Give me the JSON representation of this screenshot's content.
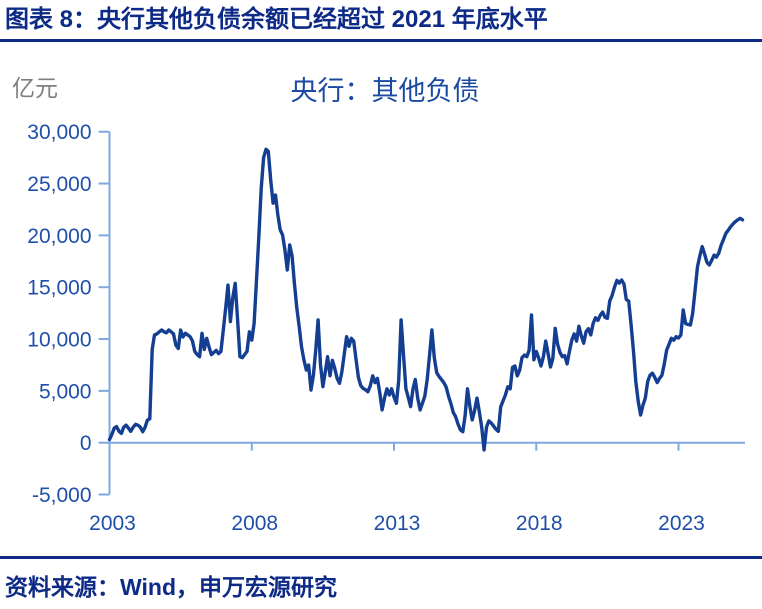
{
  "header": {
    "title": "图表 8：央行其他负债余额已经超过 2021 年底水平"
  },
  "footer": {
    "source": "资料来源：Wind，申万宏源研究"
  },
  "chart_data": {
    "type": "line",
    "title": "央行：其他负债",
    "unit_label": "亿元",
    "series_name": "央行：其他负债",
    "frequency": "monthly",
    "x_start": {
      "year": 2003,
      "month": 1
    },
    "x_end": {
      "year": 2025,
      "month": 4
    },
    "x_tick_years": [
      2003,
      2008,
      2013,
      2018,
      2023
    ],
    "y_ticks": [
      -5000,
      0,
      5000,
      10000,
      15000,
      20000,
      25000,
      30000
    ],
    "ylim": [
      -5000,
      30000
    ],
    "grid": false,
    "legend": "none",
    "colors": {
      "line": "#143e92",
      "axis": "#7fa9dc",
      "tick_label": "#1f4fa8",
      "chart_title": "#1b4aa2",
      "unit_label": "#7f7f7f",
      "heading_navy": "#0d2a86"
    },
    "values": [
      300,
      800,
      1400,
      1550,
      1100,
      900,
      1500,
      1690,
      1400,
      1100,
      1500,
      1770,
      1690,
      1500,
      1060,
      1500,
      2180,
      2300,
      9000,
      10400,
      10500,
      10700,
      10875,
      10700,
      10600,
      10875,
      10700,
      10500,
      9400,
      9100,
      10875,
      10200,
      10550,
      10400,
      10230,
      9800,
      8800,
      8500,
      8300,
      10550,
      9000,
      10070,
      9200,
      8500,
      8700,
      8900,
      8600,
      8800,
      10875,
      13000,
      15200,
      11680,
      14000,
      15380,
      12000,
      8300,
      8200,
      8500,
      8800,
      10700,
      9900,
      11500,
      15700,
      20000,
      24500,
      27500,
      28300,
      28100,
      25350,
      23100,
      23900,
      22000,
      20525,
      20040,
      18600,
      16660,
      19080,
      18000,
      15380,
      13000,
      11195,
      9260,
      8000,
      7015,
      7500,
      5085,
      6500,
      9000,
      11840,
      7500,
      5400,
      6800,
      8300,
      6450,
      7940,
      7200,
      6200,
      5730,
      6800,
      8500,
      10230,
      9300,
      10070,
      9800,
      8000,
      6300,
      5500,
      5230,
      5100,
      4910,
      5500,
      6450,
      5800,
      6200,
      4800,
      3160,
      4300,
      5200,
      4600,
      5200,
      4400,
      3800,
      6000,
      11840,
      8500,
      5200,
      4400,
      3480,
      5200,
      6100,
      4300,
      3160,
      3800,
      4500,
      6100,
      8500,
      10880,
      8200,
      6750,
      6400,
      6100,
      5800,
      5350,
      4500,
      3770,
      2900,
      2520,
      1800,
      1230,
      1060,
      2600,
      5200,
      3500,
      2200,
      3100,
      4300,
      3000,
      1500,
      -700,
      1500,
      2100,
      1900,
      1600,
      1300,
      1100,
      3450,
      4050,
      4600,
      5400,
      5200,
      7250,
      7400,
      6450,
      7000,
      8200,
      8450,
      8300,
      8900,
      12320,
      8000,
      8800,
      8200,
      7400,
      8300,
      9800,
      8600,
      7300,
      8100,
      11040,
      9500,
      8700,
      8300,
      8400,
      7600,
      8800,
      9900,
      10500,
      9800,
      11240,
      10300,
      9600,
      10700,
      11000,
      10400,
      11500,
      12050,
      11800,
      12300,
      12600,
      12100,
      12000,
      13660,
      14200,
      15000,
      15660,
      15400,
      15700,
      15300,
      13800,
      13660,
      11360,
      8800,
      5900,
      4000,
      2670,
      3600,
      4300,
      5900,
      6500,
      6700,
      6300,
      5800,
      6200,
      6500,
      7600,
      8900,
      9500,
      10070,
      9900,
      10230,
      10100,
      10400,
      12800,
      11500,
      11400,
      11350,
      12500,
      14730,
      16980,
      18000,
      18915,
      18200,
      17400,
      17140,
      17600,
      18100,
      17900,
      18300,
      19075,
      19600,
      20200,
      20500,
      20850,
      21100,
      21330,
      21500,
      21650,
      21500
    ]
  }
}
